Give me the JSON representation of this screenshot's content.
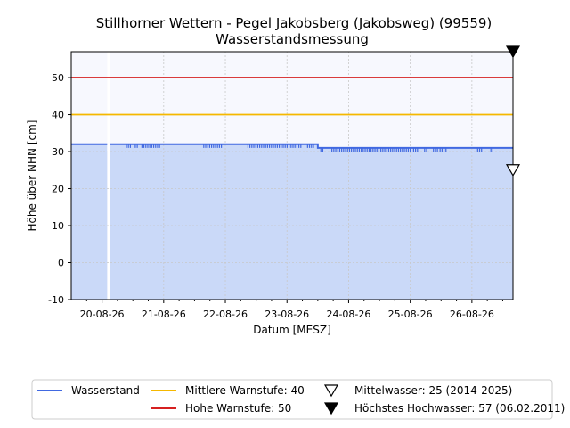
{
  "chart_data": {
    "type": "line",
    "title": "Stillhorner Wettern - Pegel Jakobsberg (Jakobsweg) (99559)",
    "subtitle": "Wasserstandsmessung",
    "xlabel": "Datum [MESZ]",
    "ylabel": "Höhe über NHN [cm]",
    "xlim": [
      "2026-08-19 12:00",
      "2026-08-26 16:00"
    ],
    "ylim": [
      -10,
      57
    ],
    "grid": true,
    "x_ticks": [
      "20-08-26",
      "21-08-26",
      "22-08-26",
      "23-08-26",
      "24-08-26",
      "25-08-26",
      "26-08-26"
    ],
    "y_ticks": [
      -10,
      0,
      10,
      20,
      30,
      40,
      50
    ],
    "series": [
      {
        "name": "Wasserstand",
        "color": "#4169e1",
        "fill": "#cad9f8",
        "points": [
          [
            "2026-08-19 12:00",
            32
          ],
          [
            "2026-08-23 12:00",
            32
          ],
          [
            "2026-08-23 12:01",
            31
          ],
          [
            "2026-08-26 16:00",
            31
          ]
        ],
        "gaps": [
          [
            "2026-08-20 02:00",
            "2026-08-20 03:00"
          ]
        ]
      }
    ],
    "thresholds": [
      {
        "name": "Mittlere Warnstufe: 40",
        "value": 40,
        "color": "#f5b800"
      },
      {
        "name": "Hohe Warnstufe: 50",
        "value": 50,
        "color": "#d62020"
      }
    ],
    "markers": [
      {
        "name": "Mittelwasser: 25 (2014-2025)",
        "value": 25,
        "style": "hollow-triangle-down"
      },
      {
        "name": "Höchstes Hochwasser: 57 (06.02.2011)",
        "value": 57,
        "style": "filled-triangle-down"
      }
    ],
    "legend": {
      "placement": "bottom",
      "items": [
        "Wasserstand",
        "Mittlere Warnstufe: 40",
        "Mittelwasser: 25 (2014-2025)",
        "Hohe Warnstufe: 50",
        "Höchstes Hochwasser: 57 (06.02.2011)"
      ]
    }
  }
}
